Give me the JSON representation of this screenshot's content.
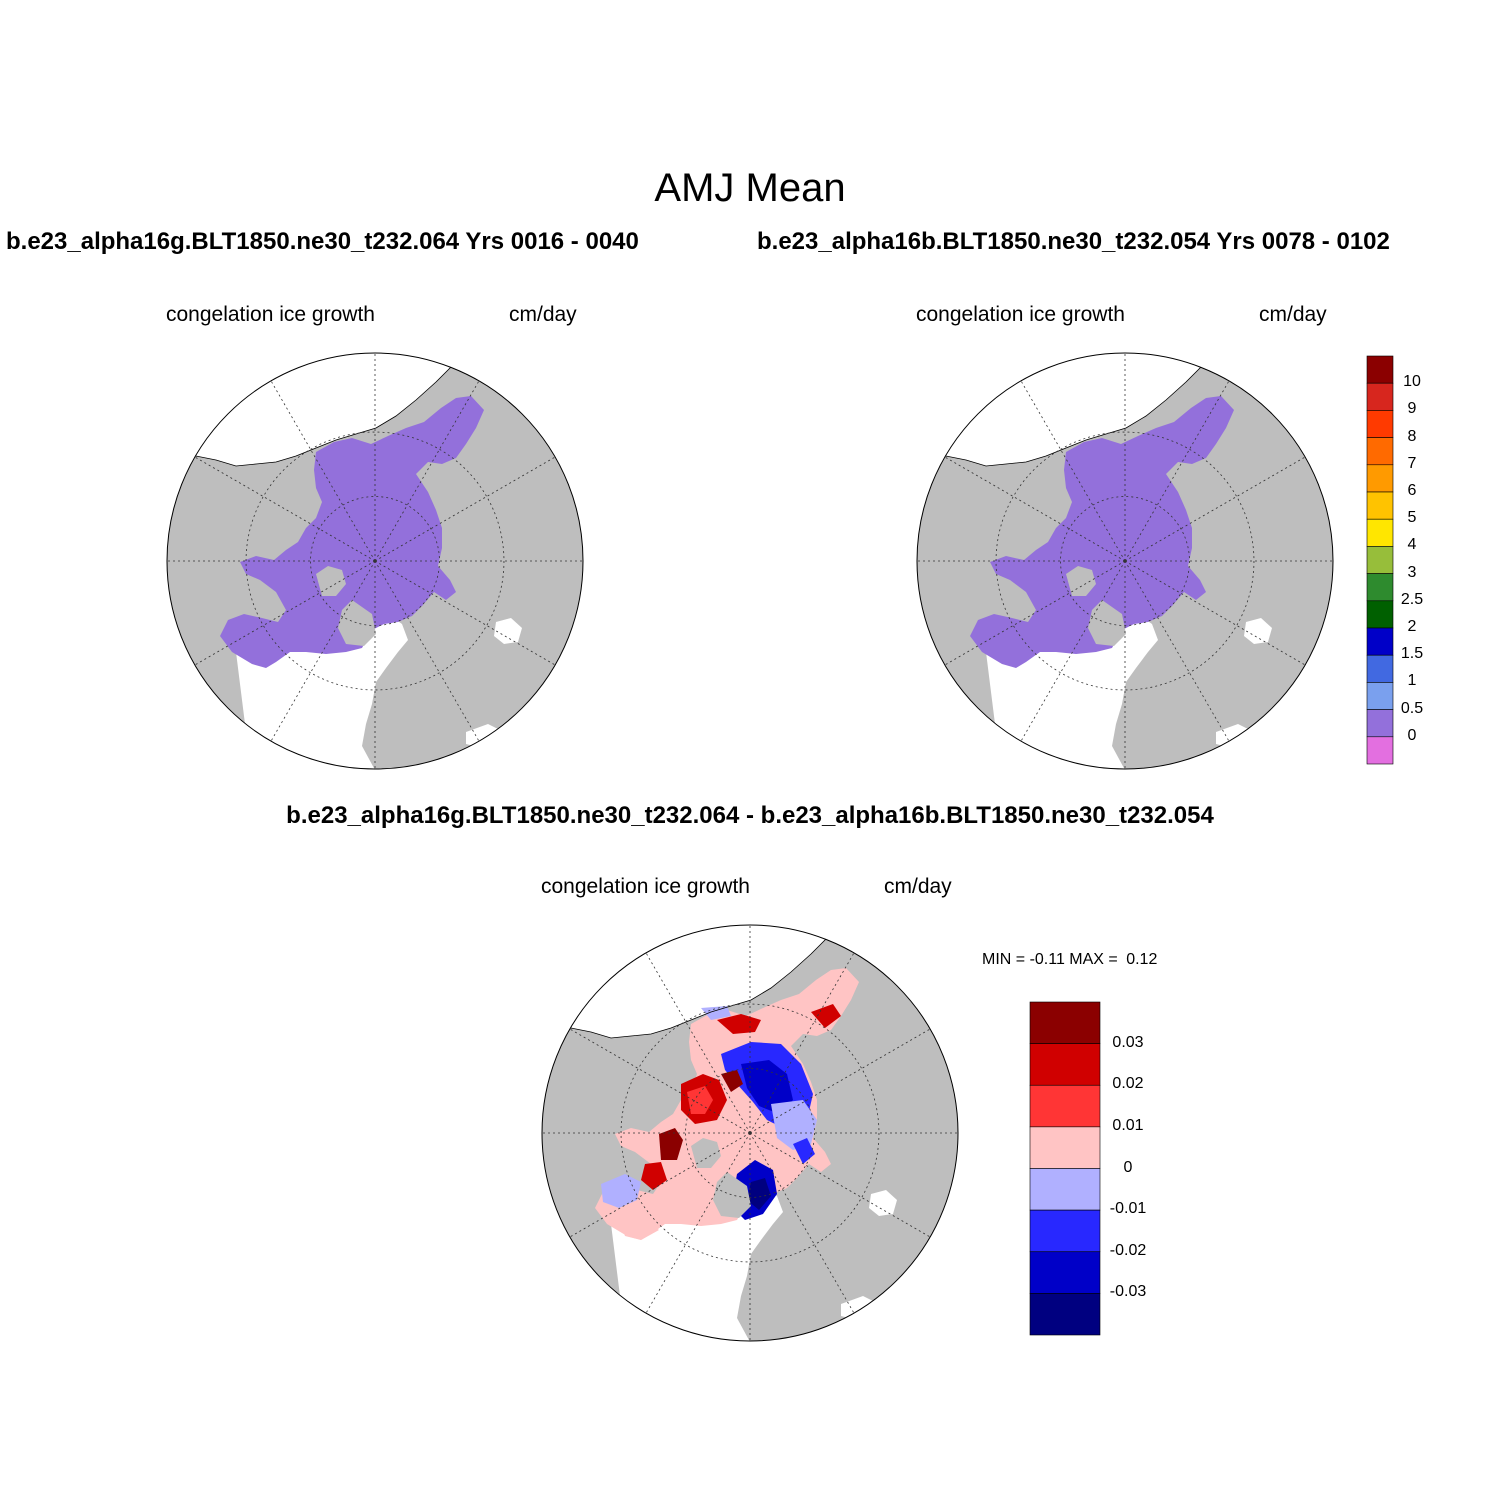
{
  "title": "AMJ Mean",
  "panels": [
    {
      "case_title": "b.e23_alpha16g.BLT1850.ne30_t232.064  Yrs 0016 - 0040",
      "variable": "congelation ice growth",
      "units": "cm/day"
    },
    {
      "case_title": "b.e23_alpha16b.BLT1850.ne30_t232.054  Yrs 0078 - 0102",
      "variable": "congelation ice growth",
      "units": "cm/day"
    }
  ],
  "difference": {
    "title": "b.e23_alpha16g.BLT1850.ne30_t232.064 - b.e23_alpha16b.BLT1850.ne30_t232.054",
    "variable": "congelation ice growth",
    "units": "cm/day",
    "min_label": "MIN = ",
    "min_value": "-0.11",
    "max_label": "MAX = ",
    "max_value": "0.12"
  },
  "colorbar_main": {
    "labels": [
      "10",
      "9",
      "8",
      "7",
      "6",
      "5",
      "4",
      "3",
      "2.5",
      "2",
      "1.5",
      "1",
      "0.5",
      "0"
    ],
    "colors": [
      "#8b0000",
      "#d7261e",
      "#ff3a00",
      "#ff6a00",
      "#ff9a00",
      "#ffc300",
      "#ffe600",
      "#97be3a",
      "#2e8b2e",
      "#006000",
      "#0000c8",
      "#4169e1",
      "#7aa0ee",
      "#9370db",
      "#e36fe0"
    ]
  },
  "colorbar_diff": {
    "labels": [
      "0.03",
      "0.02",
      "0.01",
      "0",
      "-0.01",
      "-0.02",
      "-0.03"
    ],
    "colors": [
      "#8b0000",
      "#d00000",
      "#ff3535",
      "#ffc4c4",
      "#b0b0ff",
      "#2828ff",
      "#0000c8",
      "#000080"
    ]
  },
  "map_colors": {
    "land": "#bebebe",
    "ocean": "#ffffff",
    "ice": "#9370db"
  }
}
